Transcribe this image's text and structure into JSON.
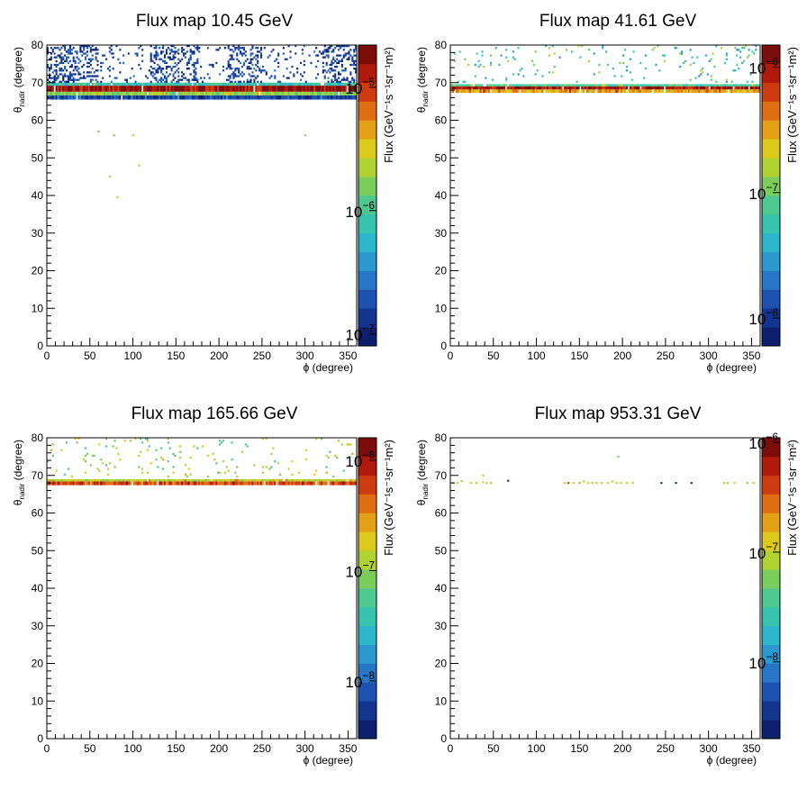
{
  "chart_data": [
    {
      "type": "heatmap",
      "title": "Flux map 10.45 GeV",
      "xlabel": "ϕ (degree)",
      "ylabel": "θ",
      "ylabel_sub": "nadir",
      "ylabel_tail": " (degree)",
      "xlim": [
        0,
        360
      ],
      "ylim": [
        0,
        80
      ],
      "x_ticks": [
        0,
        50,
        100,
        150,
        200,
        250,
        300,
        350
      ],
      "y_ticks": [
        0,
        10,
        20,
        30,
        40,
        50,
        60,
        70,
        80
      ],
      "colorbar": {
        "label": "Flux (GeV⁻¹s⁻¹sr⁻¹m²)",
        "scale": "log",
        "range": [
          8e-08,
          2.2e-05
        ],
        "labels": [
          {
            "mantissa": "10",
            "exp": "−5",
            "value": 1e-05
          },
          {
            "mantissa": "10",
            "exp": "−6",
            "value": 1e-06
          },
          {
            "mantissa": "10",
            "exp": "−7",
            "value": 1e-07
          }
        ]
      },
      "bands": [
        {
          "theta": [
            66.6,
            67.6
          ],
          "level": 0.55
        },
        {
          "theta": [
            67.6,
            69.2
          ],
          "level": 0.93
        },
        {
          "theta": [
            69.2,
            70.0
          ],
          "level": 0.4
        },
        {
          "theta": [
            65.5,
            66.6
          ],
          "level": 0.12
        }
      ],
      "scatter": {
        "theta_range": [
          70,
          80
        ],
        "density": 0.34,
        "level_range": [
          0.03,
          0.2
        ],
        "clusters_phi": [
          [
            0,
            60
          ],
          [
            120,
            175
          ],
          [
            210,
            250
          ],
          [
            320,
            360
          ]
        ]
      },
      "sparse_points": [
        {
          "phi": 78,
          "theta": 56,
          "level": 0.55
        },
        {
          "phi": 100,
          "theta": 56,
          "level": 0.6
        },
        {
          "phi": 107,
          "theta": 48,
          "level": 0.62
        },
        {
          "phi": 73,
          "theta": 45,
          "level": 0.58
        },
        {
          "phi": 82,
          "theta": 39.5,
          "level": 0.62
        },
        {
          "phi": 300,
          "theta": 56,
          "level": 0.55
        },
        {
          "phi": 60,
          "theta": 57,
          "level": 0.5
        }
      ]
    },
    {
      "type": "heatmap",
      "title": "Flux map 41.61 GeV",
      "xlabel": "ϕ (degree)",
      "ylabel": "θ",
      "ylabel_sub": "nadir",
      "ylabel_tail": " (degree)",
      "xlim": [
        0,
        360
      ],
      "ylim": [
        0,
        80
      ],
      "x_ticks": [
        0,
        50,
        100,
        150,
        200,
        250,
        300,
        350
      ],
      "y_ticks": [
        0,
        10,
        20,
        30,
        40,
        50,
        60,
        70,
        80
      ],
      "colorbar": {
        "label": "Flux (GeV⁻¹s⁻¹sr⁻¹m²)",
        "scale": "log",
        "range": [
          6e-09,
          1.5e-06
        ],
        "labels": [
          {
            "mantissa": "10",
            "exp": "−6",
            "value": 1e-06
          },
          {
            "mantissa": "10",
            "exp": "−7",
            "value": 1e-07
          },
          {
            "mantissa": "10",
            "exp": "−8",
            "value": 1e-08
          }
        ]
      },
      "bands": [
        {
          "theta": [
            67.3,
            68.2
          ],
          "level": 0.7
        },
        {
          "theta": [
            68.2,
            69.0
          ],
          "level": 0.9
        },
        {
          "theta": [
            69.0,
            69.6
          ],
          "level": 0.45
        }
      ],
      "scatter": {
        "theta_range": [
          69.8,
          80
        ],
        "density": 0.05,
        "level_range": [
          0.25,
          0.6
        ],
        "clusters_phi": [
          [
            0,
            360
          ]
        ]
      },
      "sparse_points": []
    },
    {
      "type": "heatmap",
      "title": "Flux map 165.66 GeV",
      "xlabel": "ϕ (degree)",
      "ylabel": "θ",
      "ylabel_sub": "nadir",
      "ylabel_tail": " (degree)",
      "xlim": [
        0,
        360
      ],
      "ylim": [
        0,
        80
      ],
      "x_ticks": [
        0,
        50,
        100,
        150,
        200,
        250,
        300,
        350
      ],
      "y_ticks": [
        0,
        10,
        20,
        30,
        40,
        50,
        60,
        70,
        80
      ],
      "colorbar": {
        "label": "Flux (GeV⁻¹s⁻¹sr⁻¹m²)",
        "scale": "log",
        "range": [
          3e-09,
          1.6e-06
        ],
        "labels": [
          {
            "mantissa": "10",
            "exp": "−6",
            "value": 1e-06
          },
          {
            "mantissa": "10",
            "exp": "−7",
            "value": 1e-07
          },
          {
            "mantissa": "10",
            "exp": "−8",
            "value": 1e-08
          }
        ]
      },
      "bands": [
        {
          "theta": [
            67.4,
            68.4
          ],
          "level": 0.82
        },
        {
          "theta": [
            68.4,
            69.0
          ],
          "level": 0.6
        }
      ],
      "scatter": {
        "theta_range": [
          69.5,
          80
        ],
        "density": 0.035,
        "level_range": [
          0.45,
          0.7
        ],
        "clusters_phi": [
          [
            0,
            360
          ]
        ]
      },
      "sparse_points": []
    },
    {
      "type": "heatmap",
      "title": "Flux map 953.31 GeV",
      "xlabel": "ϕ (degree)",
      "ylabel": "θ",
      "ylabel_sub": "nadir",
      "ylabel_tail": " (degree)",
      "xlim": [
        0,
        360
      ],
      "ylim": [
        0,
        80
      ],
      "x_ticks": [
        0,
        50,
        100,
        150,
        200,
        250,
        300,
        350
      ],
      "y_ticks": [
        0,
        10,
        20,
        30,
        40,
        50,
        60,
        70,
        80
      ],
      "colorbar": {
        "label": "Flux (GeV⁻¹s⁻¹sr⁻¹m²)",
        "scale": "log",
        "range": [
          2e-09,
          1.1e-06
        ],
        "labels": [
          {
            "mantissa": "10",
            "exp": "−6",
            "value": 1e-06
          },
          {
            "mantissa": "10",
            "exp": "−7",
            "value": 1e-07
          },
          {
            "mantissa": "10",
            "exp": "−8",
            "value": 1e-08
          }
        ]
      },
      "bands": [],
      "scatter": {
        "theta_range": [
          69,
          80
        ],
        "density": 0.0,
        "level_range": [
          0.6,
          0.7
        ],
        "clusters_phi": []
      },
      "sparse_points": [
        {
          "phi": 3,
          "theta": 68,
          "level": 0.62
        },
        {
          "phi": 8,
          "theta": 68,
          "level": 0.6
        },
        {
          "phi": 13,
          "theta": 68.5,
          "level": 0.58
        },
        {
          "phi": 24,
          "theta": 68,
          "level": 0.63
        },
        {
          "phi": 30,
          "theta": 68,
          "level": 0.58
        },
        {
          "phi": 38,
          "theta": 68.2,
          "level": 0.66
        },
        {
          "phi": 42,
          "theta": 68,
          "level": 0.62
        },
        {
          "phi": 47,
          "theta": 68,
          "level": 0.6
        },
        {
          "phi": 38,
          "theta": 70,
          "level": 0.6
        },
        {
          "phi": 67,
          "theta": 68.6,
          "level": 0.12
        },
        {
          "phi": 133,
          "theta": 68,
          "level": 0.6
        },
        {
          "phi": 137,
          "theta": 68,
          "level": 0.85
        },
        {
          "phi": 143,
          "theta": 68,
          "level": 0.65
        },
        {
          "phi": 150,
          "theta": 68,
          "level": 0.7
        },
        {
          "phi": 155,
          "theta": 68.4,
          "level": 0.62
        },
        {
          "phi": 160,
          "theta": 68,
          "level": 0.68
        },
        {
          "phi": 165,
          "theta": 68,
          "level": 0.58
        },
        {
          "phi": 170,
          "theta": 68,
          "level": 0.64
        },
        {
          "phi": 176,
          "theta": 68,
          "level": 0.6
        },
        {
          "phi": 183,
          "theta": 68,
          "level": 0.62
        },
        {
          "phi": 188,
          "theta": 68.4,
          "level": 0.66
        },
        {
          "phi": 193,
          "theta": 68,
          "level": 0.6
        },
        {
          "phi": 198,
          "theta": 68,
          "level": 0.64
        },
        {
          "phi": 205,
          "theta": 68,
          "level": 0.58
        },
        {
          "phi": 212,
          "theta": 68,
          "level": 0.62
        },
        {
          "phi": 195,
          "theta": 75,
          "level": 0.55
        },
        {
          "phi": 245,
          "theta": 68,
          "level": 0.1
        },
        {
          "phi": 262,
          "theta": 68,
          "level": 0.12
        },
        {
          "phi": 280,
          "theta": 68,
          "level": 0.1
        },
        {
          "phi": 318,
          "theta": 68,
          "level": 0.62
        },
        {
          "phi": 322,
          "theta": 68,
          "level": 0.58
        },
        {
          "phi": 330,
          "theta": 68,
          "level": 0.64
        },
        {
          "phi": 345,
          "theta": 68,
          "level": 0.58
        },
        {
          "phi": 352,
          "theta": 68,
          "level": 0.62
        }
      ]
    }
  ]
}
